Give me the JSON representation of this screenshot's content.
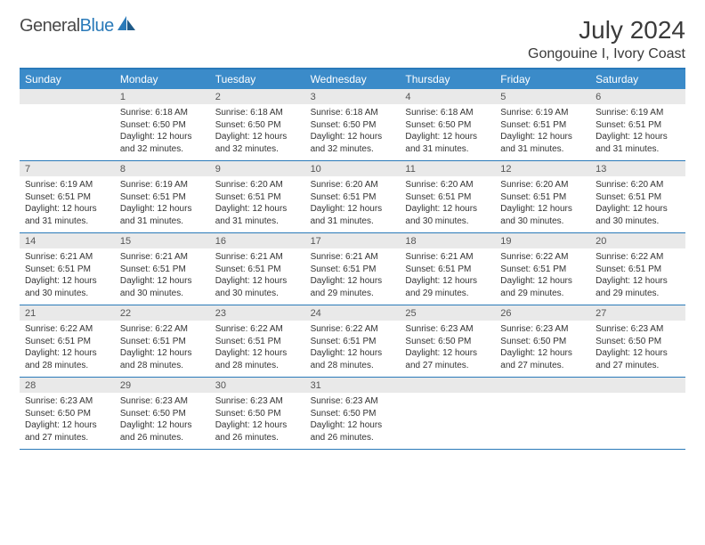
{
  "logo": {
    "text_general": "General",
    "text_blue": "Blue"
  },
  "title": "July 2024",
  "location": "Gongouine I, Ivory Coast",
  "colors": {
    "header_bg": "#3b8bc9",
    "header_text": "#ffffff",
    "border": "#2a7ab9",
    "daynum_bg": "#e9e9e9",
    "page_bg": "#ffffff",
    "body_text": "#333333",
    "title_text": "#3a3a3a"
  },
  "type": "calendar-table",
  "day_names": [
    "Sunday",
    "Monday",
    "Tuesday",
    "Wednesday",
    "Thursday",
    "Friday",
    "Saturday"
  ],
  "weeks": [
    [
      {
        "n": "",
        "sunrise": "",
        "sunset": "",
        "daylight": ""
      },
      {
        "n": "1",
        "sunrise": "Sunrise: 6:18 AM",
        "sunset": "Sunset: 6:50 PM",
        "daylight": "Daylight: 12 hours and 32 minutes."
      },
      {
        "n": "2",
        "sunrise": "Sunrise: 6:18 AM",
        "sunset": "Sunset: 6:50 PM",
        "daylight": "Daylight: 12 hours and 32 minutes."
      },
      {
        "n": "3",
        "sunrise": "Sunrise: 6:18 AM",
        "sunset": "Sunset: 6:50 PM",
        "daylight": "Daylight: 12 hours and 32 minutes."
      },
      {
        "n": "4",
        "sunrise": "Sunrise: 6:18 AM",
        "sunset": "Sunset: 6:50 PM",
        "daylight": "Daylight: 12 hours and 31 minutes."
      },
      {
        "n": "5",
        "sunrise": "Sunrise: 6:19 AM",
        "sunset": "Sunset: 6:51 PM",
        "daylight": "Daylight: 12 hours and 31 minutes."
      },
      {
        "n": "6",
        "sunrise": "Sunrise: 6:19 AM",
        "sunset": "Sunset: 6:51 PM",
        "daylight": "Daylight: 12 hours and 31 minutes."
      }
    ],
    [
      {
        "n": "7",
        "sunrise": "Sunrise: 6:19 AM",
        "sunset": "Sunset: 6:51 PM",
        "daylight": "Daylight: 12 hours and 31 minutes."
      },
      {
        "n": "8",
        "sunrise": "Sunrise: 6:19 AM",
        "sunset": "Sunset: 6:51 PM",
        "daylight": "Daylight: 12 hours and 31 minutes."
      },
      {
        "n": "9",
        "sunrise": "Sunrise: 6:20 AM",
        "sunset": "Sunset: 6:51 PM",
        "daylight": "Daylight: 12 hours and 31 minutes."
      },
      {
        "n": "10",
        "sunrise": "Sunrise: 6:20 AM",
        "sunset": "Sunset: 6:51 PM",
        "daylight": "Daylight: 12 hours and 31 minutes."
      },
      {
        "n": "11",
        "sunrise": "Sunrise: 6:20 AM",
        "sunset": "Sunset: 6:51 PM",
        "daylight": "Daylight: 12 hours and 30 minutes."
      },
      {
        "n": "12",
        "sunrise": "Sunrise: 6:20 AM",
        "sunset": "Sunset: 6:51 PM",
        "daylight": "Daylight: 12 hours and 30 minutes."
      },
      {
        "n": "13",
        "sunrise": "Sunrise: 6:20 AM",
        "sunset": "Sunset: 6:51 PM",
        "daylight": "Daylight: 12 hours and 30 minutes."
      }
    ],
    [
      {
        "n": "14",
        "sunrise": "Sunrise: 6:21 AM",
        "sunset": "Sunset: 6:51 PM",
        "daylight": "Daylight: 12 hours and 30 minutes."
      },
      {
        "n": "15",
        "sunrise": "Sunrise: 6:21 AM",
        "sunset": "Sunset: 6:51 PM",
        "daylight": "Daylight: 12 hours and 30 minutes."
      },
      {
        "n": "16",
        "sunrise": "Sunrise: 6:21 AM",
        "sunset": "Sunset: 6:51 PM",
        "daylight": "Daylight: 12 hours and 30 minutes."
      },
      {
        "n": "17",
        "sunrise": "Sunrise: 6:21 AM",
        "sunset": "Sunset: 6:51 PM",
        "daylight": "Daylight: 12 hours and 29 minutes."
      },
      {
        "n": "18",
        "sunrise": "Sunrise: 6:21 AM",
        "sunset": "Sunset: 6:51 PM",
        "daylight": "Daylight: 12 hours and 29 minutes."
      },
      {
        "n": "19",
        "sunrise": "Sunrise: 6:22 AM",
        "sunset": "Sunset: 6:51 PM",
        "daylight": "Daylight: 12 hours and 29 minutes."
      },
      {
        "n": "20",
        "sunrise": "Sunrise: 6:22 AM",
        "sunset": "Sunset: 6:51 PM",
        "daylight": "Daylight: 12 hours and 29 minutes."
      }
    ],
    [
      {
        "n": "21",
        "sunrise": "Sunrise: 6:22 AM",
        "sunset": "Sunset: 6:51 PM",
        "daylight": "Daylight: 12 hours and 28 minutes."
      },
      {
        "n": "22",
        "sunrise": "Sunrise: 6:22 AM",
        "sunset": "Sunset: 6:51 PM",
        "daylight": "Daylight: 12 hours and 28 minutes."
      },
      {
        "n": "23",
        "sunrise": "Sunrise: 6:22 AM",
        "sunset": "Sunset: 6:51 PM",
        "daylight": "Daylight: 12 hours and 28 minutes."
      },
      {
        "n": "24",
        "sunrise": "Sunrise: 6:22 AM",
        "sunset": "Sunset: 6:51 PM",
        "daylight": "Daylight: 12 hours and 28 minutes."
      },
      {
        "n": "25",
        "sunrise": "Sunrise: 6:23 AM",
        "sunset": "Sunset: 6:50 PM",
        "daylight": "Daylight: 12 hours and 27 minutes."
      },
      {
        "n": "26",
        "sunrise": "Sunrise: 6:23 AM",
        "sunset": "Sunset: 6:50 PM",
        "daylight": "Daylight: 12 hours and 27 minutes."
      },
      {
        "n": "27",
        "sunrise": "Sunrise: 6:23 AM",
        "sunset": "Sunset: 6:50 PM",
        "daylight": "Daylight: 12 hours and 27 minutes."
      }
    ],
    [
      {
        "n": "28",
        "sunrise": "Sunrise: 6:23 AM",
        "sunset": "Sunset: 6:50 PM",
        "daylight": "Daylight: 12 hours and 27 minutes."
      },
      {
        "n": "29",
        "sunrise": "Sunrise: 6:23 AM",
        "sunset": "Sunset: 6:50 PM",
        "daylight": "Daylight: 12 hours and 26 minutes."
      },
      {
        "n": "30",
        "sunrise": "Sunrise: 6:23 AM",
        "sunset": "Sunset: 6:50 PM",
        "daylight": "Daylight: 12 hours and 26 minutes."
      },
      {
        "n": "31",
        "sunrise": "Sunrise: 6:23 AM",
        "sunset": "Sunset: 6:50 PM",
        "daylight": "Daylight: 12 hours and 26 minutes."
      },
      {
        "n": "",
        "sunrise": "",
        "sunset": "",
        "daylight": ""
      },
      {
        "n": "",
        "sunrise": "",
        "sunset": "",
        "daylight": ""
      },
      {
        "n": "",
        "sunrise": "",
        "sunset": "",
        "daylight": ""
      }
    ]
  ]
}
